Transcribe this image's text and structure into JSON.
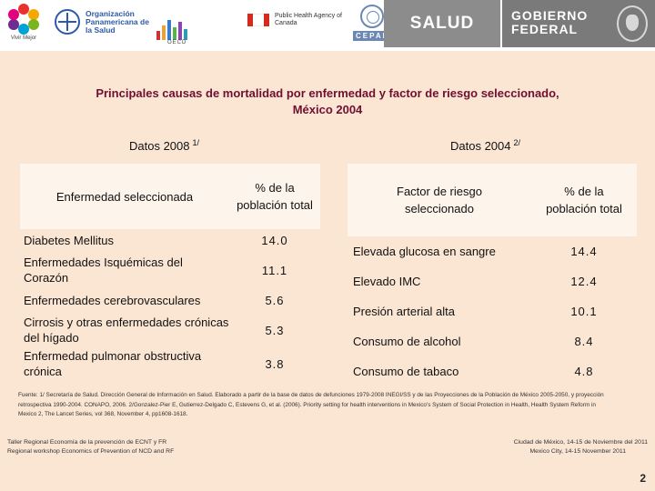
{
  "header": {
    "vivir_mejor": "Vivir Mejor",
    "ops_name": "Organización Panamericana de la Salud",
    "oecd_name": "OECD",
    "canada_agency": "Public Health Agency of Canada",
    "cepal_name": "CEPAL",
    "salud_label": "SALUD",
    "gobierno_label": "GOBIERNO FEDERAL",
    "colors": {
      "title": "#6f0f30",
      "panel": "#fbe6d4",
      "header_gray": "#8c8c8c"
    }
  },
  "title": {
    "line1": "Principales causas de mortalidad por enfermedad  y factor de riesgo seleccionado,",
    "line2": "México 2004"
  },
  "left": {
    "subtitle": "Datos 2008",
    "subtitle_note": "1/",
    "col1_header": "Enfermedad seleccionada",
    "col2_header": "% de la población total",
    "rows": [
      {
        "name": "Diabetes Mellitus",
        "value": "14.0"
      },
      {
        "name": "Enfermedades Isquémicas del Corazón",
        "value": "11.1"
      },
      {
        "name": "Enfermedades cerebrovasculares",
        "value": "5.6"
      },
      {
        "name": "Cirrosis y otras enfermedades crónicas del hígado",
        "value": "5.3"
      },
      {
        "name": "Enfermedad pulmonar obstructiva crónica",
        "value": "3.8"
      }
    ]
  },
  "right": {
    "subtitle": "Datos 2004",
    "subtitle_note": "2/",
    "col1_header": "Factor de riesgo seleccionado",
    "col2_header": "% de la población total",
    "rows": [
      {
        "name": "Elevada glucosa en sangre",
        "value": "14.4"
      },
      {
        "name": "Elevado IMC",
        "value": "12.4"
      },
      {
        "name": "Presión arterial alta",
        "value": "10.1"
      },
      {
        "name": "Consumo de alcohol",
        "value": "8.4"
      },
      {
        "name": "Consumo de tabaco",
        "value": "4.8"
      }
    ]
  },
  "footnote": "Fuente: 1/ Secretaría de Salud. Dirección General de Información en Salud. Elaborado a partir de la base de datos de defunciones 1979-2008 INEGI/SS y de las Proyecciones de la Población de México 2005-2050, y proyección retrospectiva 1990-2004. CONAPO, 2006. 2/Gonzalez-Pier E, Gutierrez-Delgado C, Estevens G, et al. (2006). Priority setting for health interventions in Mexico's System of Social Protection in Health, Health System Reform in Mexico 2, The Lancet Series, vol 368, November 4, pp1608-1618.",
  "footer": {
    "left_line1": "Taller Regional Economía de la prevención de ECNT y FR",
    "left_line2": "Regional workshop Economics of Prevention of NCD and RF",
    "right_line1": "Ciudad de México, 14-15 de Noviembre del 2011",
    "right_line2": "Mexico City, 14-15 November 2011",
    "page": "2"
  }
}
